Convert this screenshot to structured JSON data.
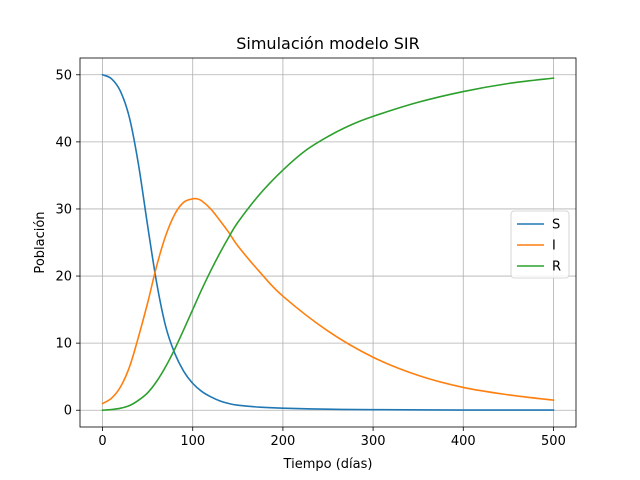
{
  "chart_data": {
    "type": "line",
    "title": "Simulación modelo SIR",
    "xlabel": "Tiempo (días)",
    "ylabel": "Población",
    "xlim": [
      -25,
      525
    ],
    "ylim": [
      -2.5,
      52.5
    ],
    "xticks": [
      0,
      100,
      200,
      300,
      400,
      500
    ],
    "yticks": [
      0,
      10,
      20,
      30,
      40,
      50
    ],
    "grid": true,
    "legend_position": "center-right",
    "series": [
      {
        "name": "S",
        "color": "#1f77b4",
        "x": [
          0,
          10,
          20,
          30,
          40,
          50,
          60,
          70,
          80,
          90,
          100,
          110,
          120,
          130,
          140,
          150,
          175,
          200,
          250,
          300,
          400,
          500
        ],
        "values": [
          50,
          49.4,
          47.5,
          43.5,
          36.5,
          27.5,
          19.0,
          12.5,
          8.5,
          5.8,
          4.0,
          2.8,
          2.0,
          1.4,
          1.0,
          0.75,
          0.45,
          0.3,
          0.15,
          0.08,
          0.03,
          0.02
        ]
      },
      {
        "name": "I",
        "color": "#ff7f0e",
        "x": [
          0,
          10,
          20,
          30,
          40,
          50,
          60,
          70,
          80,
          90,
          100,
          105,
          110,
          120,
          130,
          140,
          150,
          175,
          200,
          250,
          300,
          350,
          400,
          450,
          500
        ],
        "values": [
          1.0,
          1.8,
          3.5,
          6.5,
          11.0,
          16.0,
          21.5,
          26.0,
          29.2,
          31.0,
          31.5,
          31.5,
          31.2,
          30.0,
          28.3,
          26.5,
          24.5,
          20.5,
          17.0,
          11.8,
          7.9,
          5.2,
          3.4,
          2.3,
          1.5
        ]
      },
      {
        "name": "R",
        "color": "#2ca02c",
        "x": [
          0,
          10,
          20,
          30,
          40,
          50,
          60,
          70,
          80,
          90,
          100,
          110,
          120,
          130,
          140,
          150,
          175,
          200,
          225,
          250,
          275,
          300,
          350,
          400,
          450,
          500
        ],
        "values": [
          0,
          0.1,
          0.3,
          0.7,
          1.5,
          2.6,
          4.3,
          6.5,
          9.1,
          12.0,
          15.0,
          18.0,
          20.8,
          23.4,
          25.8,
          28.0,
          32.3,
          35.8,
          38.7,
          40.8,
          42.5,
          43.8,
          45.9,
          47.5,
          48.7,
          49.5
        ]
      }
    ]
  }
}
